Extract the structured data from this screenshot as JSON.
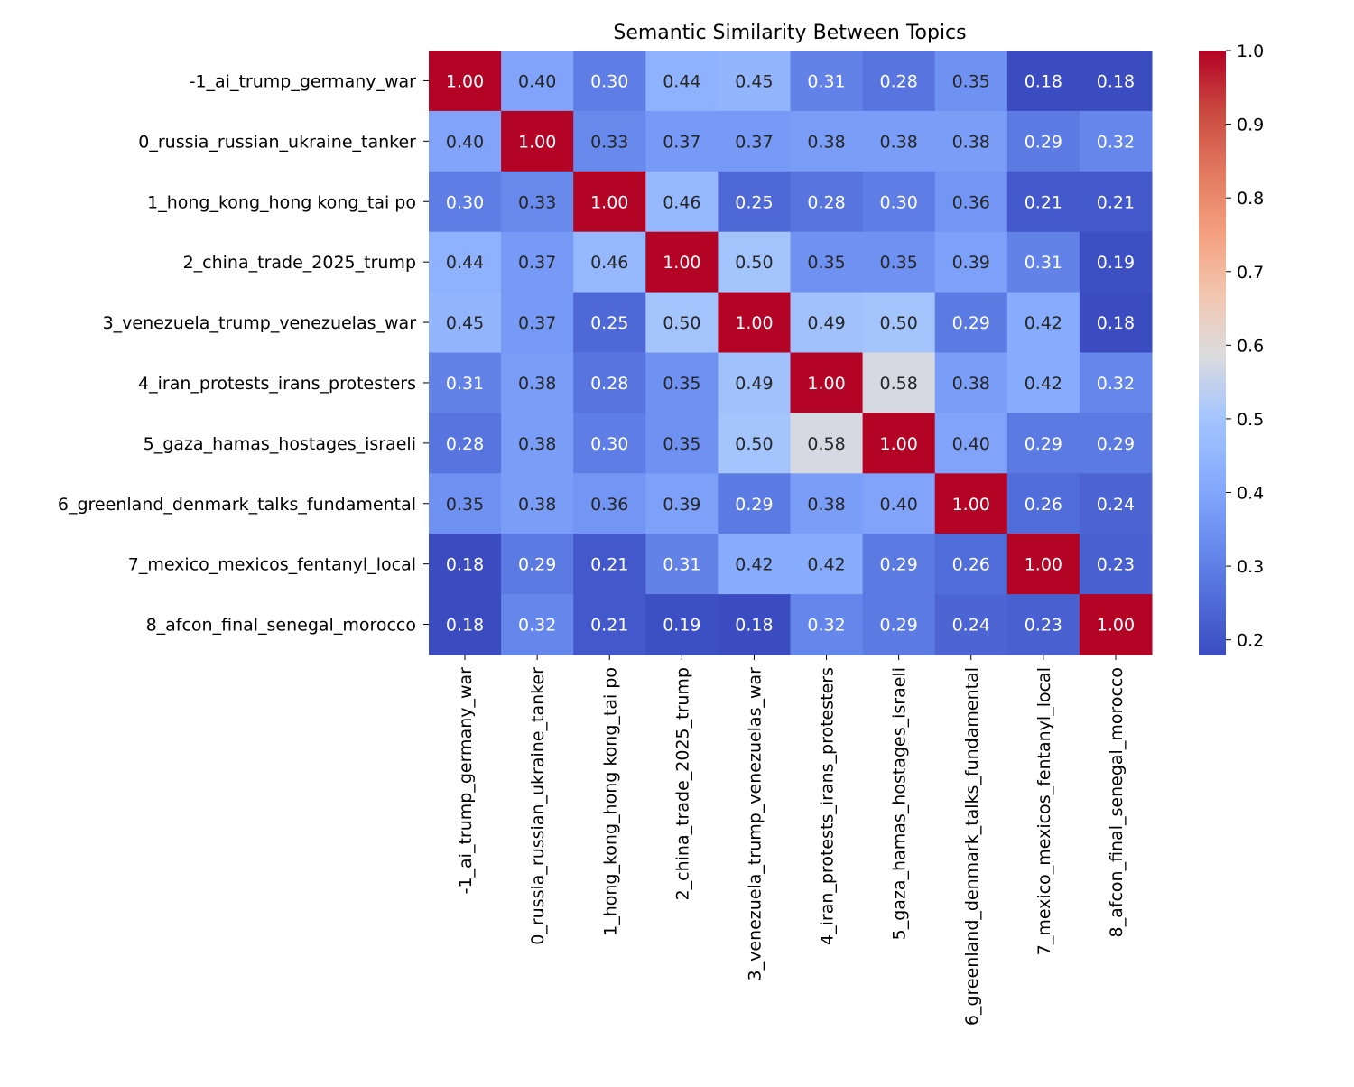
{
  "chart_data": {
    "type": "heatmap",
    "title": "Semantic Similarity Between Topics",
    "labels": [
      "-1_ai_trump_germany_war",
      "0_russia_russian_ukraine_tanker",
      "1_hong_kong_hong kong_tai po",
      "2_china_trade_2025_trump",
      "3_venezuela_trump_venezuelas_war",
      "4_iran_protests_irans_protesters",
      "5_gaza_hamas_hostages_israeli",
      "6_greenland_denmark_talks_fundamental",
      "7_mexico_mexicos_fentanyl_local",
      "8_afcon_final_senegal_morocco"
    ],
    "values": [
      [
        1.0,
        0.4,
        0.3,
        0.44,
        0.45,
        0.31,
        0.28,
        0.35,
        0.18,
        0.18
      ],
      [
        0.4,
        1.0,
        0.33,
        0.37,
        0.37,
        0.38,
        0.38,
        0.38,
        0.29,
        0.32
      ],
      [
        0.3,
        0.33,
        1.0,
        0.46,
        0.25,
        0.28,
        0.3,
        0.36,
        0.21,
        0.21
      ],
      [
        0.44,
        0.37,
        0.46,
        1.0,
        0.5,
        0.35,
        0.35,
        0.39,
        0.31,
        0.19
      ],
      [
        0.45,
        0.37,
        0.25,
        0.5,
        1.0,
        0.49,
        0.5,
        0.29,
        0.42,
        0.18
      ],
      [
        0.31,
        0.38,
        0.28,
        0.35,
        0.49,
        1.0,
        0.58,
        0.38,
        0.42,
        0.32
      ],
      [
        0.28,
        0.38,
        0.3,
        0.35,
        0.5,
        0.58,
        1.0,
        0.4,
        0.29,
        0.29
      ],
      [
        0.35,
        0.38,
        0.36,
        0.39,
        0.29,
        0.38,
        0.4,
        1.0,
        0.26,
        0.24
      ],
      [
        0.18,
        0.29,
        0.21,
        0.31,
        0.42,
        0.42,
        0.29,
        0.26,
        1.0,
        0.23
      ],
      [
        0.18,
        0.32,
        0.21,
        0.19,
        0.18,
        0.32,
        0.29,
        0.24,
        0.23,
        1.0
      ]
    ],
    "colormap": "coolwarm",
    "colorbar": {
      "range": [
        0.18,
        1.0
      ],
      "ticks": [
        "0.2",
        "0.3",
        "0.4",
        "0.5",
        "0.6",
        "0.7",
        "0.8",
        "0.9",
        "1.0"
      ]
    },
    "annotation_format": "0.00"
  }
}
